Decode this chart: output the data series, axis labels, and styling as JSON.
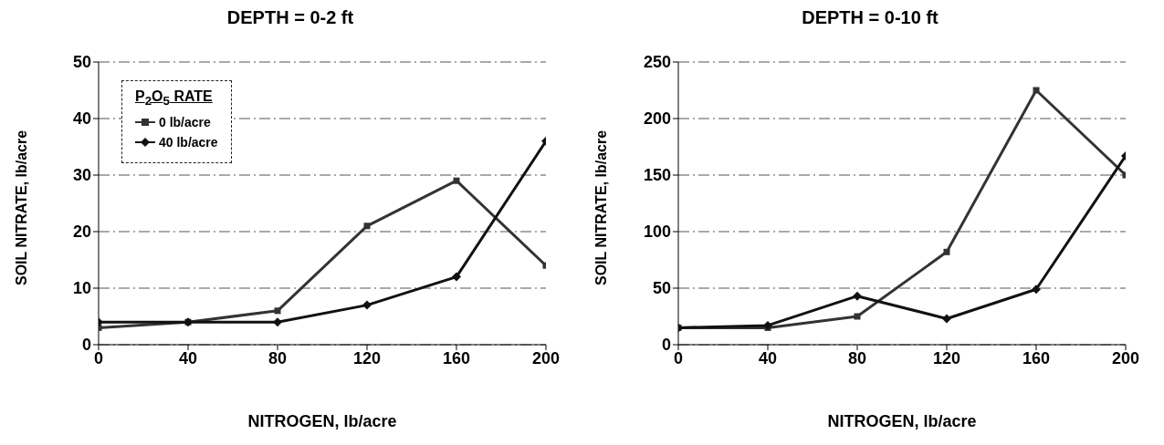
{
  "chart_data": [
    {
      "type": "line",
      "title": "DEPTH = 0-2 ft",
      "xlabel": "NITROGEN, lb/acre",
      "ylabel": "SOIL NITRATE, lb/acre",
      "legend_title": "P$_{2}$O$_{5}$ RATE",
      "x": [
        0,
        40,
        80,
        120,
        160,
        200
      ],
      "series": [
        {
          "name": "0 lb/acre",
          "color": "#333333",
          "marker": "square",
          "values": [
            3,
            4,
            6,
            21,
            29,
            14
          ]
        },
        {
          "name": "40 lb/acre",
          "color": "#111111",
          "marker": "diamond",
          "values": [
            4,
            4,
            4,
            7,
            12,
            36
          ]
        }
      ],
      "xlim": [
        0,
        200
      ],
      "xticks": [
        0,
        40,
        80,
        120,
        160,
        200
      ],
      "ylim": [
        0,
        50
      ],
      "yticks": [
        0,
        10,
        20,
        30,
        40,
        50
      ],
      "grid": "y",
      "legend": "top left"
    },
    {
      "type": "line",
      "title": "DEPTH = 0-10 ft",
      "xlabel": "NITROGEN, lb/acre",
      "ylabel": "SOIL NITRATE, lb/acre",
      "x": [
        0,
        40,
        80,
        120,
        160,
        200
      ],
      "series": [
        {
          "color": "#333333",
          "marker": "square",
          "values": [
            15,
            15,
            25,
            82,
            225,
            150
          ]
        },
        {
          "color": "#111111",
          "marker": "diamond",
          "values": [
            15,
            17,
            43,
            23,
            49,
            167
          ]
        }
      ],
      "xlim": [
        0,
        200
      ],
      "xticks": [
        0,
        40,
        80,
        120,
        160,
        200
      ],
      "ylim": [
        0,
        250
      ],
      "yticks": [
        0,
        50,
        100,
        150,
        200,
        250
      ],
      "grid": "y",
      "legend": false
    }
  ]
}
